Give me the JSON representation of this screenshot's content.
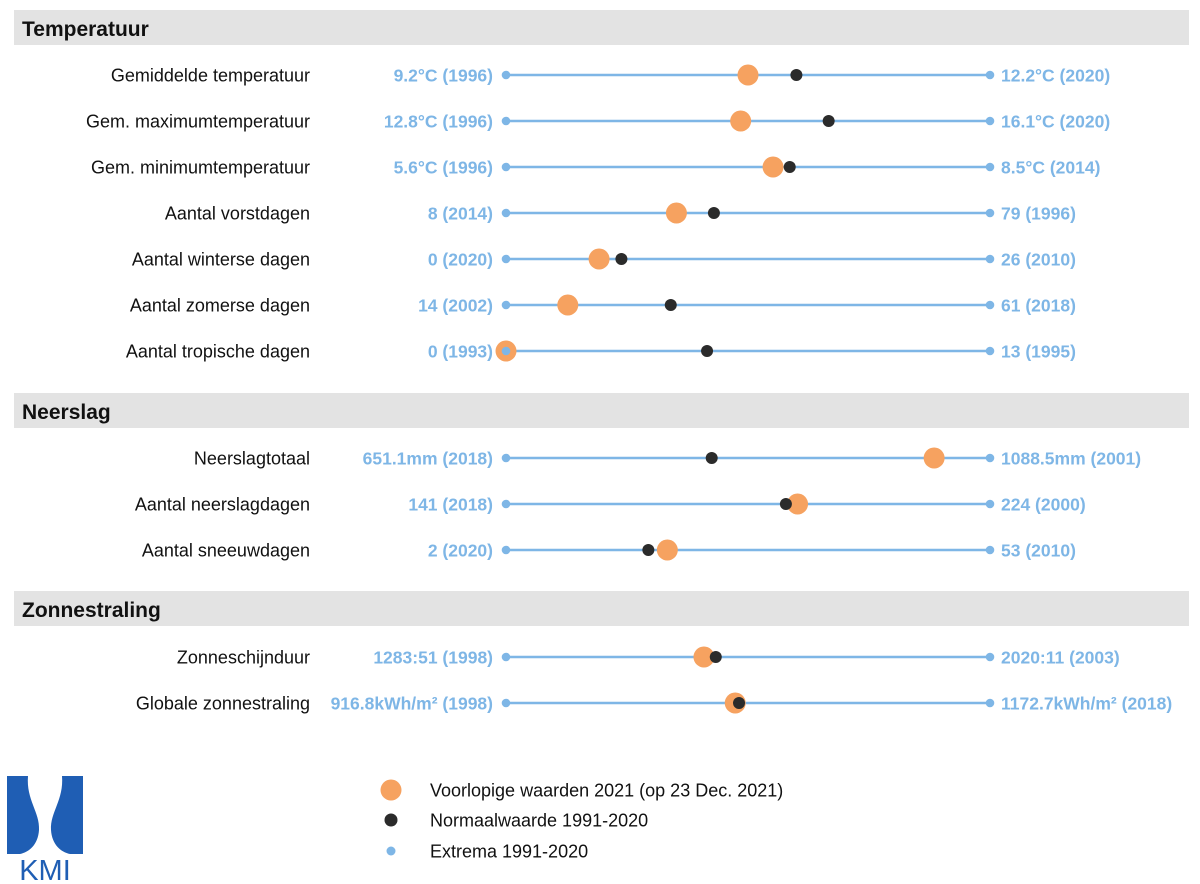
{
  "colors": {
    "orange": "#f6a260",
    "black": "#2b2b2b",
    "blue": "#7eb6e6",
    "section_band": "#e3e3e3",
    "logo_blue": "#1f5eb4"
  },
  "logo": {
    "text": "KMI"
  },
  "chart_data": {
    "type": "dumbbell",
    "scale": "each row scaled between its 1991-2020 minimum and maximum",
    "sections": [
      {
        "title": "Temperatuur",
        "rows": [
          {
            "label": "Gemiddelde temperatuur",
            "min_label": "9.2°C (1996)",
            "max_label": "12.2°C (2020)",
            "min": 9.2,
            "max": 12.2,
            "value_2021": 10.7,
            "normal": 11.0
          },
          {
            "label": "Gem. maximumtemperatuur",
            "min_label": "12.8°C (1996)",
            "max_label": "16.1°C (2020)",
            "min": 12.8,
            "max": 16.1,
            "value_2021": 14.4,
            "normal": 15.0
          },
          {
            "label": "Gem. minimumtemperatuur",
            "min_label": "5.6°C (1996)",
            "max_label": "8.5°C (2014)",
            "min": 5.6,
            "max": 8.5,
            "value_2021": 7.2,
            "normal": 7.3
          },
          {
            "label": "Aantal vorstdagen",
            "min_label": "8 (2014)",
            "max_label": "79 (1996)",
            "min": 8,
            "max": 79,
            "value_2021": 33,
            "normal": 38.5
          },
          {
            "label": "Aantal winterse dagen",
            "min_label": "0 (2020)",
            "max_label": "26 (2010)",
            "min": 0,
            "max": 26,
            "value_2021": 5,
            "normal": 6.2
          },
          {
            "label": "Aantal zomerse dagen",
            "min_label": "14 (2002)",
            "max_label": "61 (2018)",
            "min": 14,
            "max": 61,
            "value_2021": 20,
            "normal": 30
          },
          {
            "label": "Aantal tropische dagen",
            "min_label": "0 (1993)",
            "max_label": "13 (1995)",
            "min": 0,
            "max": 13,
            "value_2021": 0,
            "normal": 5.4
          }
        ]
      },
      {
        "title": "Neerslag",
        "rows": [
          {
            "label": "Neerslagtotaal",
            "min_label": "651.1mm (2018)",
            "max_label": "1088.5mm (2001)",
            "min": 651.1,
            "max": 1088.5,
            "value_2021": 1038,
            "normal": 837
          },
          {
            "label": "Aantal neerslagdagen",
            "min_label": "141 (2018)",
            "max_label": "224 (2000)",
            "min": 141,
            "max": 224,
            "value_2021": 191,
            "normal": 189
          },
          {
            "label": "Aantal sneeuwdagen",
            "min_label": "2 (2020)",
            "max_label": "53 (2010)",
            "min": 2,
            "max": 53,
            "value_2021": 19,
            "normal": 17
          }
        ]
      },
      {
        "title": "Zonnestraling",
        "rows": [
          {
            "label": "Zonneschijnduur",
            "min_label": "1283:51 (1998)",
            "max_label": "2020:11 (2003)",
            "min": 1283.85,
            "max": 2020.18,
            "value_2021": 1585,
            "normal": 1603
          },
          {
            "label": "Globale zonnestraling",
            "min_label": "916.8kWh/m² (1998)",
            "max_label": "1172.7kWh/m² (2018)",
            "min": 916.8,
            "max": 1172.7,
            "value_2021": 1038,
            "normal": 1040
          }
        ]
      }
    ],
    "legend": [
      {
        "label": "Voorlopige waarden 2021 (op 23 Dec. 2021)",
        "marker": "orange-large-dot"
      },
      {
        "label": "Normaalwaarde 1991-2020",
        "marker": "black-dot"
      },
      {
        "label": "Extrema 1991-2020",
        "marker": "blue-small-dot"
      }
    ]
  }
}
